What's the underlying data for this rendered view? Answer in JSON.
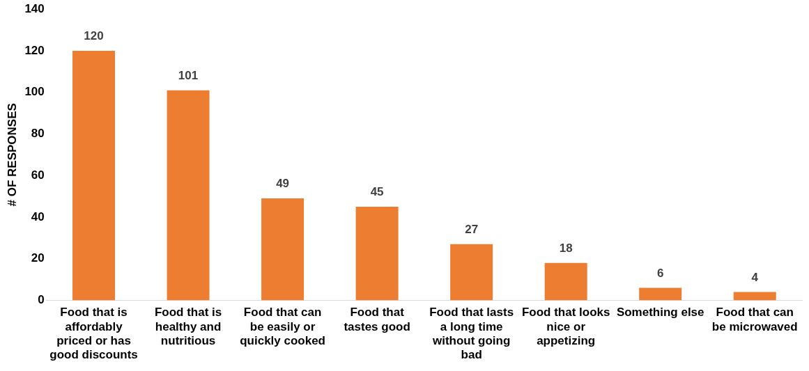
{
  "chart_data": {
    "type": "bar",
    "ylabel": "# OF RESPONSES",
    "categories": [
      "Food that is affordably priced or has good discounts",
      "Food that is healthy and nutritious",
      "Food that can be easily or quickly cooked",
      "Food that tastes good",
      "Food that lasts a long time without going bad",
      "Food that looks nice or appetizing",
      "Something else",
      "Food that can be microwaved"
    ],
    "values": [
      120,
      101,
      49,
      45,
      27,
      18,
      6,
      4
    ],
    "color": "#ed7d31",
    "ylim": [
      0,
      140
    ],
    "yticks": [
      0,
      20,
      40,
      60,
      80,
      100,
      120,
      140
    ],
    "grid": false,
    "legend": false,
    "data_labels": true
  }
}
